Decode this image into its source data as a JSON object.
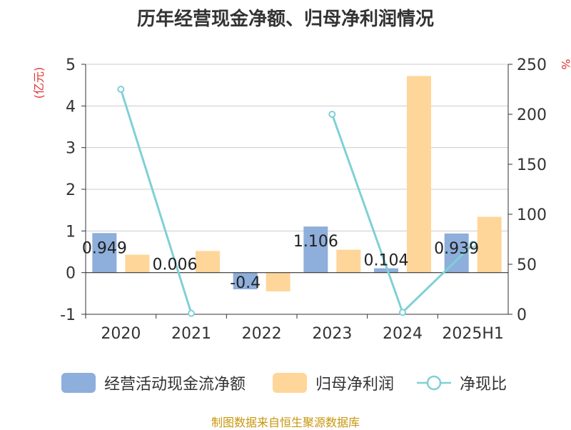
{
  "title": "历年经营现金净额、归母净利润情况",
  "left_unit": "(亿元)",
  "right_unit": "%",
  "source": "制图数据来自恒生聚源数据库",
  "colors": {
    "cash": "#8eaedb",
    "profit": "#ffd699",
    "ratio": "#7fd0d6",
    "left_unit": "#e0332e",
    "right_unit": "#e0332e"
  },
  "legend": [
    {
      "label": "经营活动现金流净额",
      "key": "cash",
      "kind": "bar"
    },
    {
      "label": "归母净利润",
      "key": "profit",
      "kind": "bar"
    },
    {
      "label": "净现比",
      "key": "ratio",
      "kind": "line"
    }
  ],
  "chart_data": {
    "type": "bar",
    "categories": [
      "2020",
      "2021",
      "2022",
      "2023",
      "2024",
      "2025H1"
    ],
    "series": [
      {
        "name": "经营活动现金流净额",
        "values": [
          0.949,
          0.006,
          -0.4,
          1.106,
          0.104,
          0.939
        ],
        "labels": [
          "0.949",
          "0.006",
          "-0.4",
          "1.106",
          "0.104",
          "0.939"
        ]
      },
      {
        "name": "归母净利润",
        "values": [
          0.43,
          0.52,
          -0.45,
          0.55,
          4.72,
          1.34
        ]
      },
      {
        "name": "净现比",
        "type": "line",
        "axis": "right",
        "values": [
          225,
          1,
          null,
          200,
          2,
          70
        ]
      }
    ],
    "ylim_left": [
      -1,
      5
    ],
    "yticks_left": [
      -1,
      0,
      1,
      2,
      3,
      4,
      5
    ],
    "ylim_right": [
      0,
      250
    ],
    "yticks_right": [
      0,
      50,
      100,
      150,
      200,
      250
    ],
    "grid": true,
    "legend_position": "bottom"
  }
}
